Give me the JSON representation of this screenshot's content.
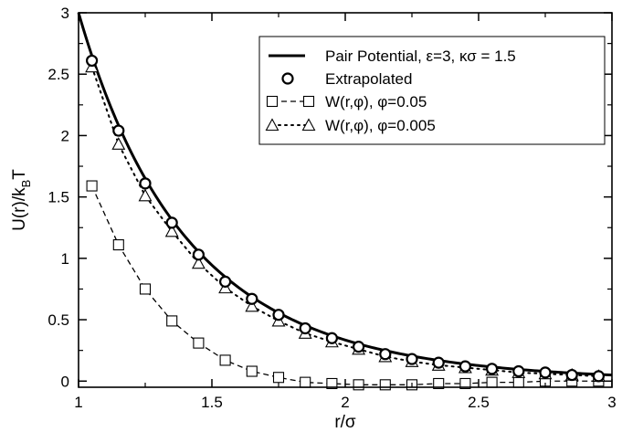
{
  "chart_data": {
    "type": "line",
    "xlabel": "r/σ",
    "ylabel": "U(r)/k",
    "ylabel_sub": "B",
    "ylabel_tail": "T",
    "xlim": [
      1,
      3
    ],
    "ylim": [
      -0.05,
      3
    ],
    "xticks": [
      1,
      1.5,
      2,
      2.5,
      3
    ],
    "xtick_labels": [
      "1",
      "1.5",
      "2",
      "2.5",
      "3"
    ],
    "yticks": [
      0,
      0.5,
      1,
      1.5,
      2,
      2.5,
      3
    ],
    "ytick_labels": [
      "0",
      "0.5",
      "1",
      "1.5",
      "2",
      "2.5",
      "3"
    ],
    "grid": false,
    "legend_position": "top-right",
    "series": [
      {
        "name": "Pair Potential, ε=3, κσ = 1.5",
        "style": "solid-line",
        "color": "#000000",
        "function": "yukawa",
        "epsilon": 3,
        "kappa_sigma": 1.5
      },
      {
        "name": "Extrapolated",
        "style": "circle-markers",
        "color": "#000000",
        "x": [
          1.05,
          1.15,
          1.25,
          1.35,
          1.45,
          1.55,
          1.65,
          1.75,
          1.85,
          1.95,
          2.05,
          2.15,
          2.25,
          2.35,
          2.45,
          2.55,
          2.65,
          2.75,
          2.85,
          2.95
        ],
        "y": [
          2.61,
          2.04,
          1.61,
          1.29,
          1.03,
          0.81,
          0.67,
          0.54,
          0.43,
          0.35,
          0.28,
          0.22,
          0.18,
          0.15,
          0.12,
          0.1,
          0.08,
          0.07,
          0.05,
          0.04
        ]
      },
      {
        "name": "W(r,φ), φ=0.05",
        "style": "square-markers-dashed",
        "color": "#000000",
        "x": [
          1.05,
          1.15,
          1.25,
          1.35,
          1.45,
          1.55,
          1.65,
          1.75,
          1.85,
          1.95,
          2.05,
          2.15,
          2.25,
          2.35,
          2.45,
          2.55,
          2.65,
          2.75,
          2.85,
          2.95
        ],
        "y": [
          1.59,
          1.11,
          0.75,
          0.49,
          0.31,
          0.17,
          0.08,
          0.03,
          -0.01,
          -0.02,
          -0.03,
          -0.03,
          -0.03,
          -0.02,
          -0.02,
          -0.01,
          -0.01,
          0.0,
          0.0,
          0.0
        ]
      },
      {
        "name": "W(r,φ), φ=0.005",
        "style": "triangle-markers-dotted",
        "color": "#000000",
        "x": [
          1.05,
          1.15,
          1.25,
          1.35,
          1.45,
          1.55,
          1.65,
          1.75,
          1.85,
          1.95,
          2.05,
          2.15,
          2.25,
          2.35,
          2.45,
          2.55,
          2.65,
          2.75,
          2.85,
          2.95
        ],
        "y": [
          2.56,
          1.93,
          1.51,
          1.22,
          0.96,
          0.76,
          0.61,
          0.49,
          0.39,
          0.32,
          0.26,
          0.2,
          0.16,
          0.13,
          0.11,
          0.09,
          0.07,
          0.06,
          0.05,
          0.04
        ]
      }
    ]
  }
}
